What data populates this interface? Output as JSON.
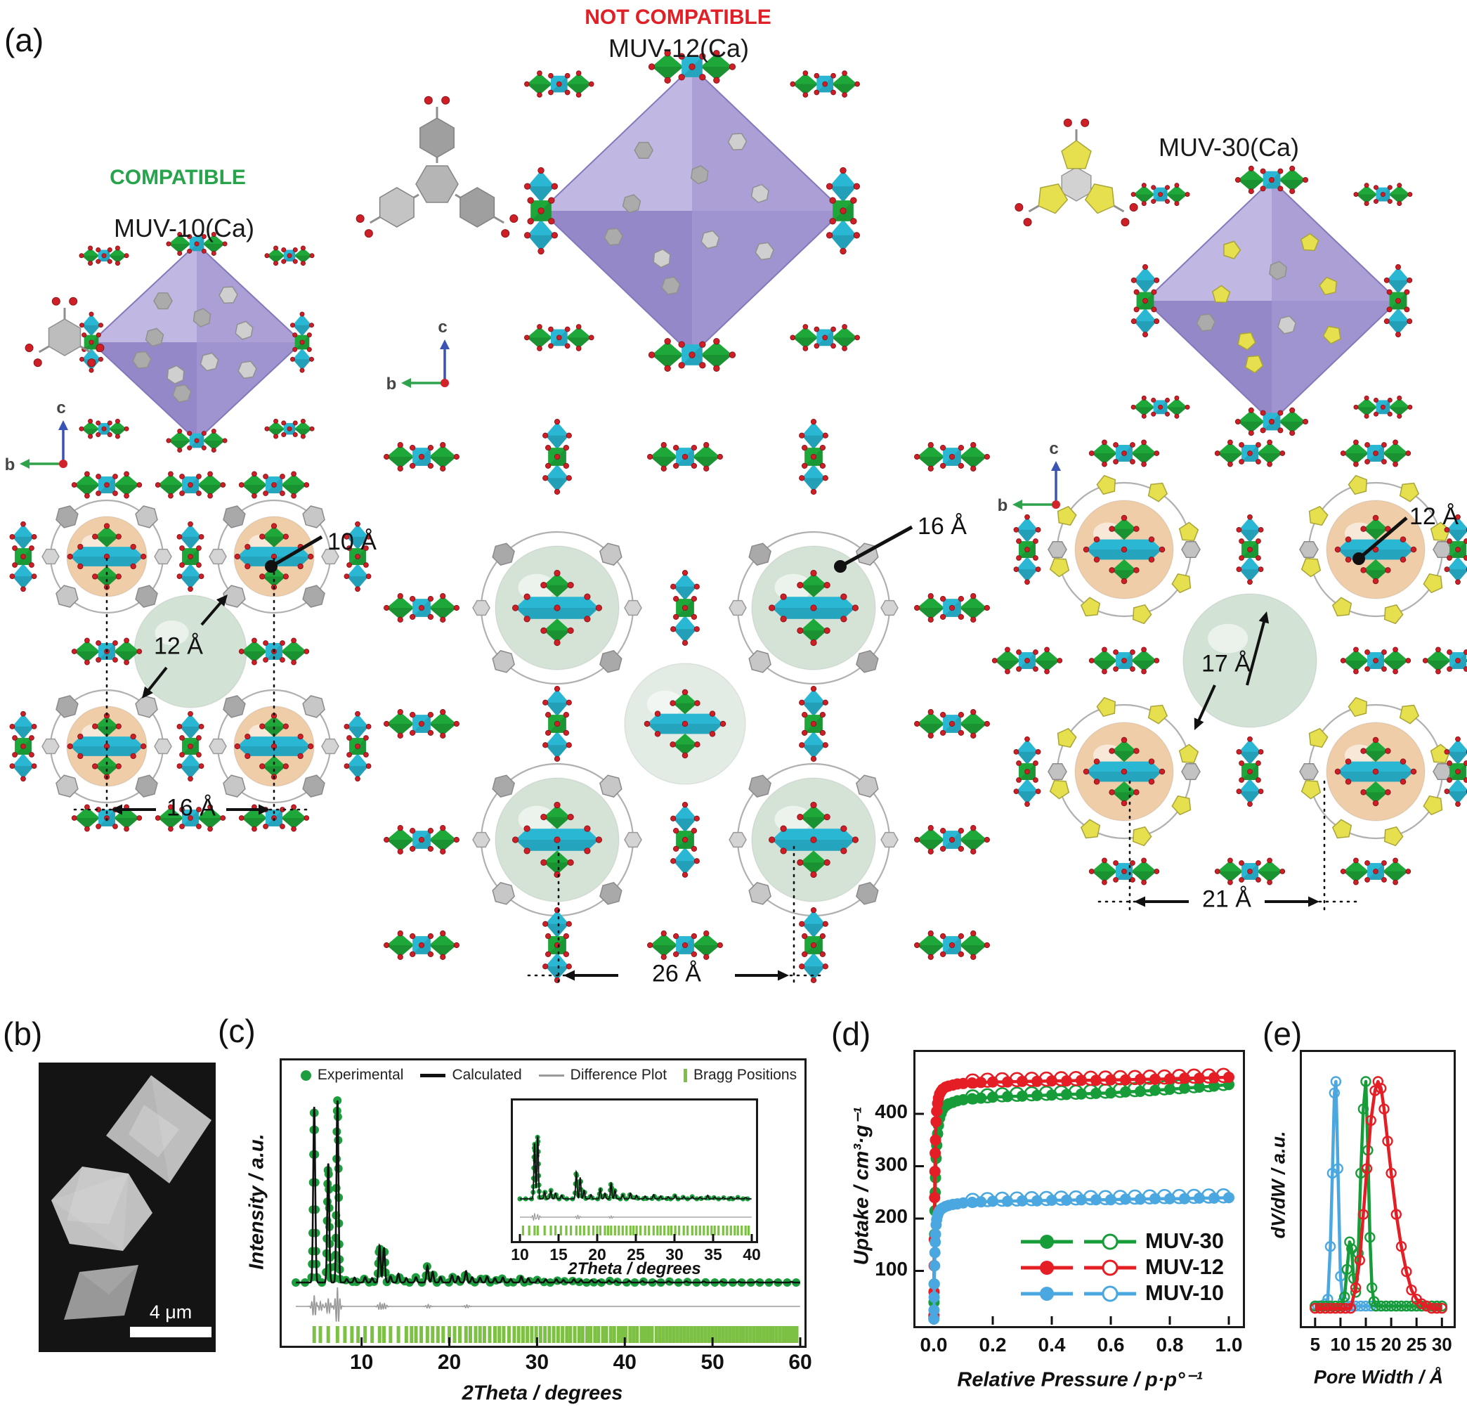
{
  "panels": {
    "a": "(a)",
    "b": "(b)",
    "c": "(c)",
    "d": "(d)",
    "e": "(e)"
  },
  "axis_triad": {
    "b": "b",
    "c": "c"
  },
  "panel_a": {
    "compatible": "COMPATIBLE",
    "not_compatible": "NOT COMPATIBLE",
    "muv10": {
      "title": "MUV-10(Ca)",
      "ann_small_pore": "10 Å",
      "ann_large_pore": "12 Å",
      "ann_spacing": "16 Å"
    },
    "muv12": {
      "title": "MUV-12(Ca)",
      "ann_pore": "16 Å",
      "ann_spacing": "26 Å"
    },
    "muv30": {
      "title": "MUV-30(Ca)",
      "ann_small_pore": "12 Å",
      "ann_large_pore": "17 Å",
      "ann_spacing": "21 Å"
    },
    "colors": {
      "green_poly": "#1ea83a",
      "cyan_poly": "#29b7d3",
      "purple_light": "#c0b8e2",
      "purple_dark": "#9488c8",
      "red_atom": "#cf1f26",
      "gray_linker": "#ababab",
      "yellow_linker": "#e6e04e",
      "orange_sphere": "#edcba4",
      "pale_green_sphere": "#cfe0d2"
    }
  },
  "panel_b": {
    "scale_label": "4 μm"
  },
  "panel_c": {
    "chart_data": {
      "type": "line",
      "xlabel": "2Theta / degrees",
      "ylabel": "Intensity / a.u.",
      "xlim": [
        2.5,
        60
      ],
      "xticks": [
        10,
        20,
        30,
        40,
        50,
        60
      ],
      "legend": [
        "Experimental",
        "Calculated",
        "Difference Plot",
        "Bragg Positions"
      ],
      "legend_colors": {
        "experimental": "#1d9e3e",
        "calculated": "#111111",
        "difference": "#9a9a9a",
        "bragg": "#7cc143"
      },
      "peaks": [
        [
          4.6,
          1.0
        ],
        [
          6.2,
          0.68
        ],
        [
          7.25,
          1.04
        ],
        [
          8.3,
          0.02
        ],
        [
          9.2,
          0.028
        ],
        [
          10.4,
          0.03
        ],
        [
          11.2,
          0.025
        ],
        [
          12.05,
          0.21
        ],
        [
          12.55,
          0.2
        ],
        [
          13.3,
          0.035
        ],
        [
          14.2,
          0.05
        ],
        [
          15.1,
          0.025
        ],
        [
          16.2,
          0.03
        ],
        [
          17.5,
          0.095
        ],
        [
          18.1,
          0.06
        ],
        [
          19.0,
          0.03
        ],
        [
          20.3,
          0.04
        ],
        [
          21.0,
          0.035
        ],
        [
          21.9,
          0.065
        ],
        [
          22.6,
          0.03
        ],
        [
          23.5,
          0.028
        ],
        [
          24.3,
          0.034
        ],
        [
          25.2,
          0.024
        ],
        [
          26.1,
          0.028
        ],
        [
          27.0,
          0.02
        ],
        [
          28.2,
          0.034
        ],
        [
          29.0,
          0.024
        ],
        [
          30.1,
          0.02
        ],
        [
          31.0,
          0.018
        ],
        [
          32.2,
          0.018
        ],
        [
          33.0,
          0.014
        ],
        [
          34.2,
          0.018
        ],
        [
          35.0,
          0.014
        ],
        [
          36.2,
          0.014
        ],
        [
          37.0,
          0.012
        ],
        [
          38.2,
          0.012
        ],
        [
          39.0,
          0.01
        ],
        [
          40.5,
          0.01
        ],
        [
          42.0,
          0.009
        ],
        [
          43.5,
          0.008
        ],
        [
          45.0,
          0.008
        ],
        [
          47.0,
          0.007
        ],
        [
          49.0,
          0.006
        ],
        [
          51.0,
          0.006
        ],
        [
          53.0,
          0.005
        ],
        [
          55.0,
          0.005
        ],
        [
          57.0,
          0.004
        ],
        [
          59.0,
          0.004
        ]
      ],
      "bragg": [
        4.6,
        5.3,
        6.2,
        7.25,
        8.1,
        8.9,
        9.6,
        10.4,
        11.2,
        12.05,
        12.55,
        13.3,
        14.2,
        15.1,
        15.7,
        16.2,
        16.8,
        17.5,
        18.1,
        18.7,
        19.3,
        20.0,
        20.6,
        21.2,
        21.9,
        22.4,
        23.0,
        23.5,
        24.0,
        24.6,
        25.2,
        25.7,
        26.2,
        26.8,
        27.4,
        27.9,
        28.4,
        28.9,
        29.4,
        29.9,
        30.4,
        30.9,
        31.4,
        31.9,
        32.4,
        32.9,
        33.4,
        33.8,
        34.3,
        34.8,
        35.2,
        35.7,
        36.1,
        36.6,
        37.0,
        37.5,
        37.9,
        38.4,
        38.8,
        39.3,
        39.7,
        40.1,
        40.6,
        41.0,
        41.4,
        41.9,
        42.3,
        42.7,
        43.1,
        43.6,
        44.0,
        44.4,
        44.8,
        45.2,
        45.6,
        46.0,
        46.4,
        46.8,
        47.2,
        47.6,
        48.0,
        48.4,
        48.8,
        49.2,
        49.6,
        50.0,
        50.4,
        50.8,
        51.2,
        51.6,
        52.0,
        52.4,
        52.8,
        53.2,
        53.5,
        53.9,
        54.3,
        54.7,
        55.1,
        55.4,
        55.8,
        56.2,
        56.6,
        56.9,
        57.3,
        57.7,
        58.1,
        58.4,
        58.8,
        59.2,
        59.6
      ],
      "diff": [
        [
          4.6,
          0.07
        ],
        [
          5.3,
          0.03
        ],
        [
          6.2,
          0.05
        ],
        [
          7.25,
          0.12
        ],
        [
          12.1,
          0.022
        ],
        [
          12.6,
          0.018
        ],
        [
          17.6,
          0.012
        ],
        [
          22.0,
          0.01
        ]
      ],
      "inset": {
        "xlabel": "2Theta / degrees",
        "xlim": [
          10,
          40
        ],
        "xticks": [
          10,
          15,
          20,
          25,
          30,
          35,
          40
        ],
        "peaks": [
          [
            11.9,
            0.78
          ],
          [
            12.3,
            0.88
          ],
          [
            13.2,
            0.1
          ],
          [
            14.0,
            0.12
          ],
          [
            14.6,
            0.08
          ],
          [
            15.4,
            0.05
          ],
          [
            17.3,
            0.38
          ],
          [
            17.8,
            0.3
          ],
          [
            18.3,
            0.12
          ],
          [
            19.2,
            0.06
          ],
          [
            20.4,
            0.14
          ],
          [
            21.0,
            0.08
          ],
          [
            21.8,
            0.22
          ],
          [
            22.3,
            0.12
          ],
          [
            23.3,
            0.06
          ],
          [
            24.3,
            0.08
          ],
          [
            25.1,
            0.05
          ],
          [
            26.2,
            0.04
          ],
          [
            27.3,
            0.06
          ],
          [
            28.2,
            0.04
          ],
          [
            29.2,
            0.03
          ],
          [
            30.1,
            0.05
          ],
          [
            31.2,
            0.03
          ],
          [
            32.3,
            0.03
          ],
          [
            33.3,
            0.025
          ],
          [
            34.3,
            0.05
          ],
          [
            35.2,
            0.025
          ],
          [
            36.3,
            0.02
          ],
          [
            37.3,
            0.03
          ],
          [
            38.2,
            0.02
          ],
          [
            39.2,
            0.02
          ]
        ],
        "bragg": [
          10.4,
          11.2,
          11.9,
          12.3,
          13.2,
          14.0,
          14.6,
          15.3,
          16.0,
          16.6,
          17.3,
          17.8,
          18.3,
          18.9,
          19.5,
          20.0,
          20.4,
          21.0,
          21.4,
          21.8,
          22.3,
          22.8,
          23.3,
          23.8,
          24.3,
          24.7,
          25.1,
          25.6,
          26.2,
          26.7,
          27.3,
          27.8,
          28.2,
          28.7,
          29.2,
          29.6,
          30.1,
          30.6,
          31.2,
          31.7,
          32.3,
          32.8,
          33.3,
          33.8,
          34.3,
          34.8,
          35.2,
          35.7,
          36.3,
          36.8,
          37.3,
          37.8,
          38.2,
          38.7,
          39.2,
          39.6
        ],
        "diff": [
          [
            11.9,
            0.06
          ],
          [
            12.3,
            0.05
          ],
          [
            17.5,
            0.03
          ],
          [
            21.8,
            0.02
          ]
        ]
      }
    }
  },
  "panel_d": {
    "chart_data": {
      "type": "scatter",
      "xlabel": "Relative Pressure / p·p°⁻¹",
      "ylabel": "Uptake / cm³·g⁻¹",
      "xlim": [
        0,
        1.0
      ],
      "ylim": [
        0,
        490
      ],
      "xticks": [
        0,
        0.2,
        0.4,
        0.6,
        0.8,
        1.0
      ],
      "xtick_labels": [
        "0.0",
        "0.2",
        "0.4",
        "0.6",
        "0.8",
        "1.0"
      ],
      "yticks": [
        100,
        200,
        300,
        400
      ],
      "x": [
        0.0005,
        0.001,
        0.0015,
        0.002,
        0.003,
        0.004,
        0.005,
        0.006,
        0.008,
        0.01,
        0.013,
        0.016,
        0.02,
        0.025,
        0.03,
        0.04,
        0.05,
        0.065,
        0.08,
        0.1,
        0.13,
        0.16,
        0.2,
        0.25,
        0.3,
        0.35,
        0.4,
        0.45,
        0.5,
        0.55,
        0.6,
        0.65,
        0.7,
        0.75,
        0.8,
        0.85,
        0.9,
        0.95,
        1.0
      ],
      "series": [
        {
          "name": "MUV-30",
          "color": "#169c38",
          "y": [
            10,
            40,
            75,
            110,
            170,
            215,
            250,
            278,
            315,
            340,
            362,
            378,
            392,
            401,
            408,
            415,
            419,
            422,
            425,
            427,
            429,
            430,
            432,
            433,
            434,
            435,
            436,
            437,
            438,
            439,
            440,
            442,
            443,
            445,
            447,
            449,
            451,
            453,
            456
          ]
        },
        {
          "name": "MUV-12",
          "color": "#e51d25",
          "y": [
            15,
            60,
            110,
            160,
            240,
            290,
            325,
            350,
            385,
            405,
            420,
            430,
            438,
            443,
            447,
            451,
            453,
            455,
            457,
            458,
            459,
            460,
            461,
            461,
            462,
            462,
            463,
            463,
            464,
            464,
            465,
            465,
            466,
            466,
            467,
            468,
            468,
            469,
            470
          ]
        },
        {
          "name": "MUV-10",
          "color": "#4ba7e0",
          "y": [
            8,
            25,
            50,
            75,
            110,
            135,
            155,
            170,
            188,
            198,
            206,
            211,
            215,
            218,
            220,
            223,
            225,
            227,
            228,
            230,
            231,
            232,
            233,
            233,
            234,
            234,
            235,
            235,
            236,
            236,
            236,
            237,
            237,
            238,
            238,
            238,
            239,
            239,
            240
          ]
        }
      ],
      "legend": [
        "MUV-30",
        "MUV-12",
        "MUV-10"
      ],
      "legend_position": "bottom-right"
    }
  },
  "panel_e": {
    "chart_data": {
      "type": "line",
      "xlabel": "Pore Width / Å",
      "ylabel": "dV/dW / a.u.",
      "xlim": [
        3.5,
        31
      ],
      "xticks": [
        5,
        10,
        15,
        20,
        25,
        30
      ],
      "series": [
        {
          "name": "MUV-10",
          "color": "#4ba7e0",
          "x": [
            5,
            5.5,
            6,
            6.5,
            7,
            7.5,
            8,
            8.4,
            8.8,
            9.1,
            9.5,
            10,
            10.5,
            11,
            12,
            13,
            14,
            15,
            16,
            17,
            18,
            19,
            20,
            21,
            22,
            23,
            24,
            25,
            26,
            27,
            28,
            29,
            30
          ],
          "y": [
            0.02,
            0.02,
            0.02,
            0.02,
            0.03,
            0.05,
            0.28,
            0.6,
            0.95,
            1.0,
            0.62,
            0.15,
            0.04,
            0.02,
            0.02,
            0.02,
            0.02,
            0.02,
            0.02,
            0.02,
            0.02,
            0.02,
            0.02,
            0.02,
            0.02,
            0.02,
            0.02,
            0.02,
            0.02,
            0.02,
            0.02,
            0.02,
            0.02
          ]
        },
        {
          "name": "MUV-30",
          "color": "#169c38",
          "x": [
            5,
            6,
            7,
            8,
            9,
            10,
            10.8,
            11.3,
            11.8,
            12.2,
            12.6,
            13,
            13.5,
            14,
            14.5,
            15,
            15.4,
            15.8,
            16.2,
            16.6,
            17,
            18,
            19,
            20,
            21,
            22,
            23,
            24,
            25,
            26,
            27,
            28,
            29,
            30
          ],
          "y": [
            0.02,
            0.02,
            0.02,
            0.02,
            0.02,
            0.02,
            0.06,
            0.18,
            0.3,
            0.27,
            0.14,
            0.08,
            0.25,
            0.6,
            0.88,
            1.0,
            0.7,
            0.32,
            0.1,
            0.04,
            0.02,
            0.02,
            0.02,
            0.02,
            0.02,
            0.02,
            0.02,
            0.02,
            0.02,
            0.02,
            0.02,
            0.02,
            0.02,
            0.02
          ]
        },
        {
          "name": "MUV-12",
          "color": "#e51d25",
          "x": [
            5,
            6,
            7,
            8,
            9,
            10,
            11,
            12,
            13,
            13.8,
            14.5,
            15.2,
            16,
            16.8,
            17.4,
            18,
            18.6,
            19.3,
            20,
            21,
            22,
            23,
            24,
            25,
            26,
            27,
            28,
            29,
            30
          ],
          "y": [
            0.01,
            0.01,
            0.01,
            0.01,
            0.01,
            0.01,
            0.01,
            0.01,
            0.1,
            0.22,
            0.42,
            0.62,
            0.83,
            0.96,
            1.0,
            0.97,
            0.88,
            0.74,
            0.6,
            0.42,
            0.28,
            0.17,
            0.09,
            0.05,
            0.03,
            0.02,
            0.01,
            0.01,
            0.01
          ]
        }
      ]
    }
  }
}
